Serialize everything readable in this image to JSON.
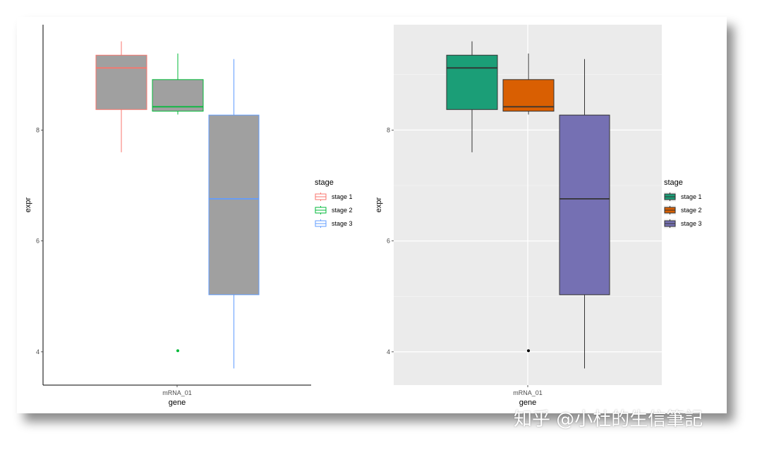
{
  "chart_data": [
    {
      "type": "boxplot",
      "theme": "classic",
      "fill": "#a0a0a0",
      "xlabel": "gene",
      "ylabel": "expr",
      "categories": [
        "mRNA_01"
      ],
      "ylim": [
        3.4,
        9.9
      ],
      "yticks": [
        4,
        6,
        8
      ],
      "grid": false,
      "legend": {
        "title": "stage",
        "position": "right"
      },
      "series": [
        {
          "name": "stage 1",
          "color": "#F8766D",
          "min": 7.6,
          "q1": 8.37,
          "median": 9.12,
          "q3": 9.35,
          "max": 9.6,
          "outliers": []
        },
        {
          "name": "stage 2",
          "color": "#00BA38",
          "min": 8.28,
          "q1": 8.34,
          "median": 8.42,
          "q3": 8.91,
          "max": 9.38,
          "outliers": [
            4.02
          ]
        },
        {
          "name": "stage 3",
          "color": "#619CFF",
          "min": 3.7,
          "q1": 5.03,
          "median": 6.76,
          "q3": 8.27,
          "max": 9.28,
          "outliers": []
        }
      ]
    },
    {
      "type": "boxplot",
      "theme": "grey",
      "xlabel": "gene",
      "ylabel": "expr",
      "categories": [
        "mRNA_01"
      ],
      "ylim": [
        3.4,
        9.9
      ],
      "yticks": [
        4,
        6,
        8
      ],
      "grid": true,
      "legend": {
        "title": "stage",
        "position": "right"
      },
      "series": [
        {
          "name": "stage 1",
          "color": "#1B9E77",
          "min": 7.6,
          "q1": 8.37,
          "median": 9.12,
          "q3": 9.35,
          "max": 9.6,
          "outliers": []
        },
        {
          "name": "stage 2",
          "color": "#D95F02",
          "min": 8.28,
          "q1": 8.34,
          "median": 8.42,
          "q3": 8.91,
          "max": 9.38,
          "outliers": [
            4.02
          ]
        },
        {
          "name": "stage 3",
          "color": "#7570B3",
          "min": 3.7,
          "q1": 5.03,
          "median": 6.76,
          "q3": 8.27,
          "max": 9.28,
          "outliers": []
        }
      ]
    }
  ],
  "watermark": "知乎 @小杜的生信筆記"
}
